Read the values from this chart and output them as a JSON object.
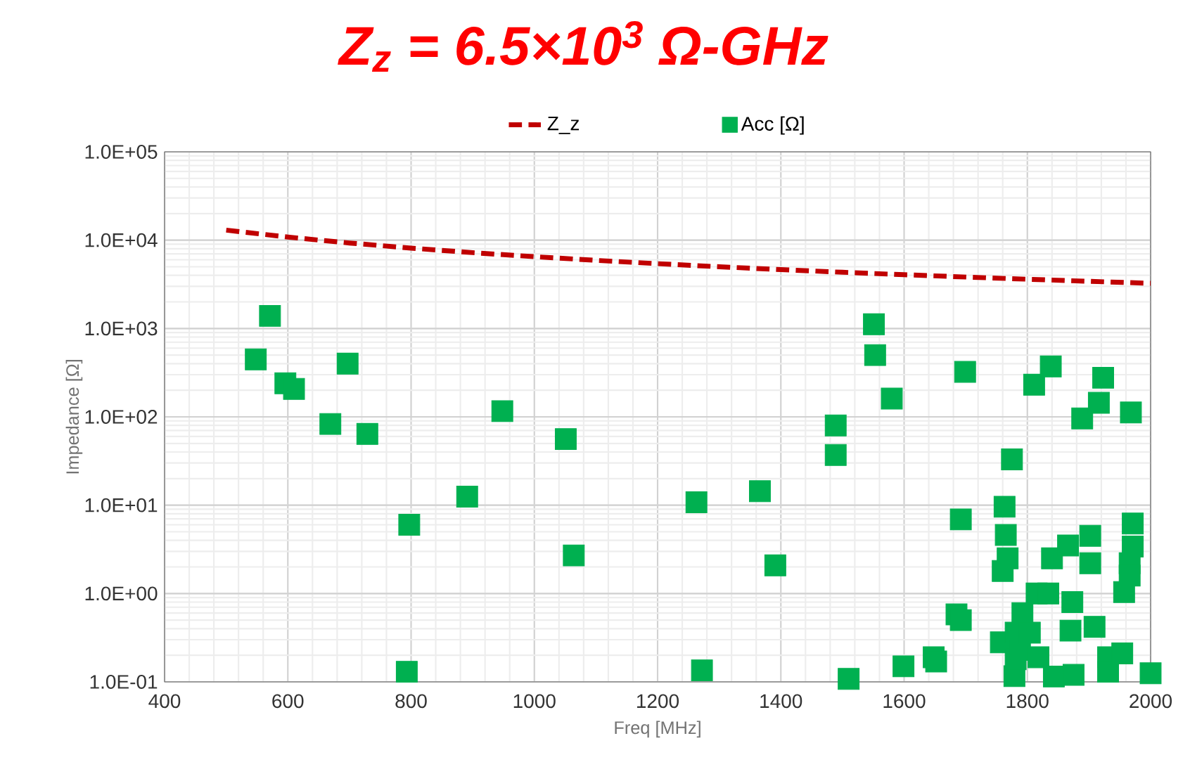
{
  "chart_data": {
    "type": "scatter",
    "title": "Z$_{z}$ = 6.5×10$^{3}$ Ω-GHz",
    "xlabel": "Freq [MHz]",
    "ylabel": "Impedance [Ω]",
    "xlim": [
      400,
      2000
    ],
    "ylim": [
      0.1,
      100000
    ],
    "xticks": [
      400,
      600,
      800,
      1000,
      1200,
      1400,
      1600,
      1800,
      2000
    ],
    "yticks": [
      {
        "value": 0.1,
        "label": "1.0E-01"
      },
      {
        "value": 1,
        "label": "1.0E+00"
      },
      {
        "value": 10,
        "label": "1.0E+01"
      },
      {
        "value": 100,
        "label": "1.0E+02"
      },
      {
        "value": 1000,
        "label": "1.0E+03"
      },
      {
        "value": 10000,
        "label": "1.0E+04"
      },
      {
        "value": 100000,
        "label": "1.0E+05"
      }
    ],
    "log": "y",
    "grid": true,
    "legend": "top",
    "series": [
      {
        "name": "Z_z",
        "type": "line",
        "color": "#c00000",
        "line_style": "dashed",
        "marker": "none",
        "x": [
          500,
          600,
          700,
          800,
          900,
          1000,
          1100,
          1200,
          1300,
          1400,
          1500,
          1600,
          1700,
          1800,
          1900,
          2000
        ],
        "values": [
          13000,
          10833,
          9286,
          8125,
          7222,
          6500,
          5909,
          5417,
          5000,
          4643,
          4333,
          4063,
          3824,
          3611,
          3421,
          3250
        ]
      },
      {
        "name": "Acc [Ω]",
        "color": "#00b050",
        "marker": "square",
        "x": [
          548,
          571,
          596,
          610,
          669,
          697,
          729,
          793,
          797,
          891,
          948,
          1051,
          1064,
          1263,
          1272,
          1366,
          1391,
          1489,
          1489,
          1510,
          1551,
          1553,
          1580,
          1599,
          1648,
          1652,
          1685,
          1692,
          1692,
          1699,
          1757,
          1760,
          1763,
          1765,
          1768,
          1775,
          1779,
          1781,
          1781,
          1788,
          1792,
          1804,
          1811,
          1815,
          1818,
          1834,
          1838,
          1840,
          1843,
          1866,
          1870,
          1873,
          1875,
          1889,
          1902,
          1902,
          1909,
          1916,
          1923,
          1931,
          1931,
          1954,
          1957,
          1966,
          1966,
          1968,
          1971,
          1971,
          2000
        ],
        "values": [
          447,
          1390,
          240,
          207,
          83,
          400,
          64,
          0.13,
          6.0,
          12.5,
          116,
          56,
          2.7,
          10.8,
          0.135,
          14.4,
          2.08,
          80,
          37,
          0.108,
          1116,
          500,
          161,
          0.15,
          0.19,
          0.17,
          0.58,
          0.5,
          6.9,
          323,
          0.28,
          1.8,
          9.6,
          4.6,
          2.5,
          33,
          0.116,
          0.36,
          0.18,
          0.23,
          0.6,
          0.36,
          231,
          1.0,
          0.19,
          1.0,
          372,
          2.5,
          0.115,
          3.5,
          0.38,
          0.8,
          0.12,
          96,
          4.5,
          2.2,
          0.42,
          144,
          277,
          0.19,
          0.13,
          0.21,
          1.04,
          2.2,
          1.6,
          112,
          6.2,
          3.4,
          0.125
        ]
      }
    ]
  }
}
